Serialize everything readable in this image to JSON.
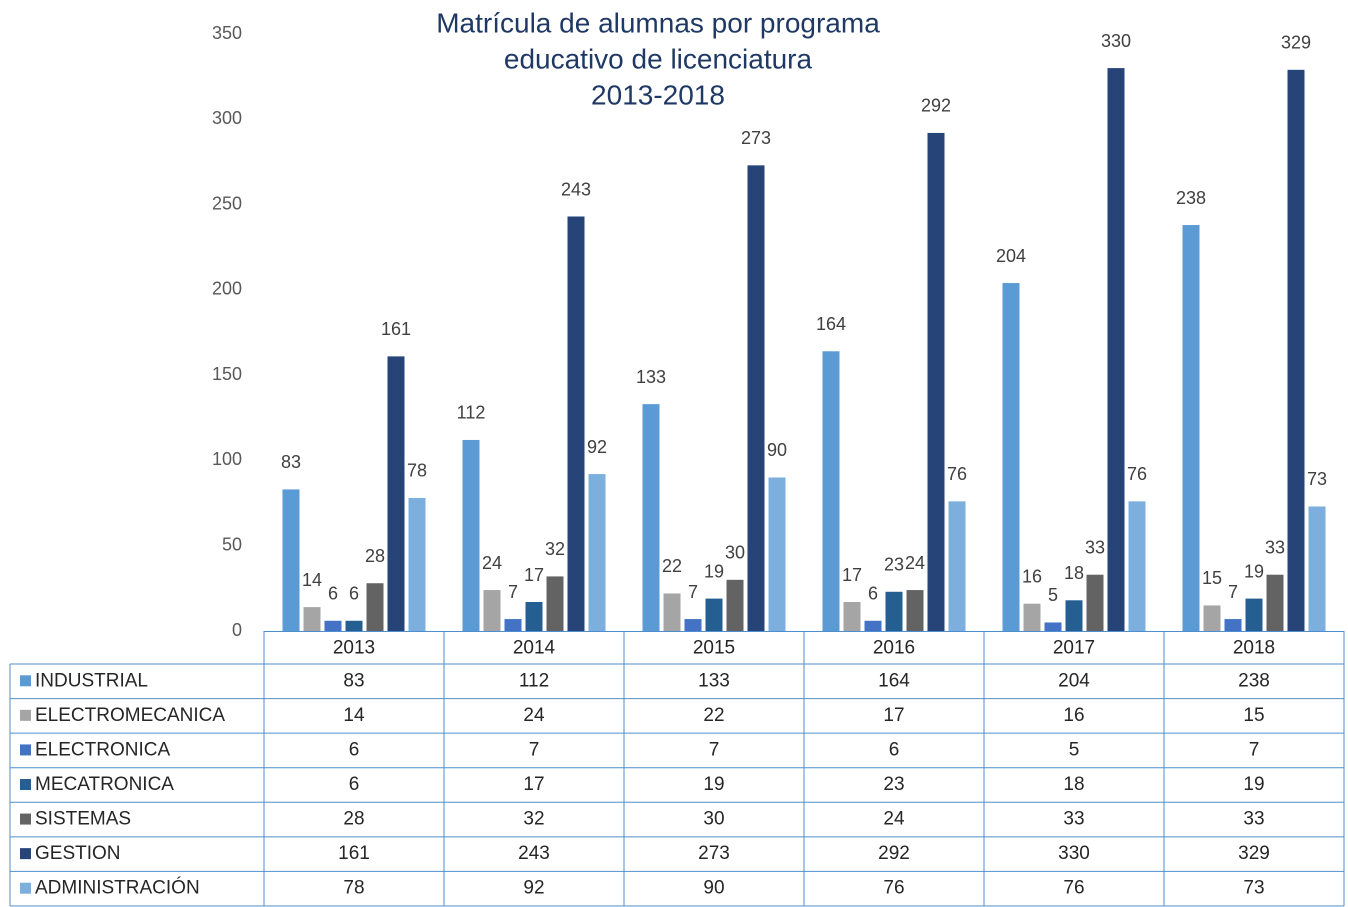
{
  "chart_data": {
    "type": "bar",
    "title": [
      "Matrícula de alumnas por programa",
      "educativo de licenciatura",
      "2013-2018"
    ],
    "categories": [
      "2013",
      "2014",
      "2015",
      "2016",
      "2017",
      "2018"
    ],
    "series": [
      {
        "name": "INDUSTRIAL",
        "color": "#5b9bd5",
        "values": [
          83,
          112,
          133,
          164,
          204,
          238
        ]
      },
      {
        "name": "ELECTROMECANICA",
        "color": "#a5a5a5",
        "values": [
          14,
          24,
          22,
          17,
          16,
          15
        ]
      },
      {
        "name": "ELECTRONICA",
        "color": "#4472c4",
        "values": [
          6,
          7,
          7,
          6,
          5,
          7
        ]
      },
      {
        "name": "MECATRONICA",
        "color": "#255e91",
        "values": [
          6,
          17,
          19,
          23,
          18,
          19
        ]
      },
      {
        "name": "SISTEMAS",
        "color": "#636363",
        "values": [
          28,
          32,
          30,
          24,
          33,
          33
        ]
      },
      {
        "name": "GESTION",
        "color": "#264478",
        "values": [
          161,
          243,
          273,
          292,
          330,
          329
        ]
      },
      {
        "name": "ADMINISTRACIÓN",
        "color": "#7cafdd",
        "values": [
          78,
          92,
          90,
          76,
          76,
          73
        ]
      }
    ],
    "ylim": [
      0,
      350
    ],
    "yticks": [
      0,
      50,
      100,
      150,
      200,
      250,
      300,
      350
    ],
    "grid": false
  }
}
